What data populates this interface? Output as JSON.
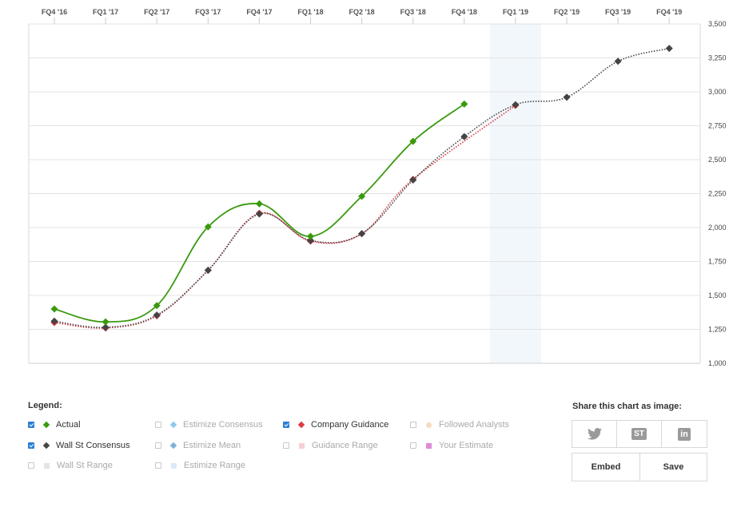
{
  "chart_data": {
    "type": "line",
    "categories": [
      "FQ4 '16",
      "FQ1 '17",
      "FQ2 '17",
      "FQ3 '17",
      "FQ4 '17",
      "FQ1 '18",
      "FQ2 '18",
      "FQ3 '18",
      "FQ4 '18",
      "FQ1 '19",
      "FQ2 '19",
      "FQ3 '19",
      "FQ4 '19"
    ],
    "y_ticks": [
      "3,500",
      "3,250",
      "3,000",
      "2,750",
      "2,500",
      "2,250",
      "2,000",
      "1,750",
      "1,500",
      "1,250",
      "1,000"
    ],
    "ylim": [
      1000,
      3500
    ],
    "highlighted_category": "FQ1 '19",
    "grid": true,
    "series": [
      {
        "name": "Actual",
        "color": "#3a9a0e",
        "style": "solid",
        "values": [
          1400,
          1305,
          1425,
          2005,
          2175,
          1935,
          2230,
          2635,
          2910,
          null,
          null,
          null,
          null
        ]
      },
      {
        "name": "Wall St Consensus",
        "color": "#444444",
        "style": "dotted",
        "values": [
          1310,
          1265,
          1355,
          1685,
          2100,
          1905,
          1955,
          2350,
          2670,
          2905,
          2960,
          3225,
          3320
        ]
      },
      {
        "name": "Company Guidance",
        "color": "#d9363e",
        "style": "dotted",
        "values": [
          1300,
          1260,
          1350,
          1685,
          2105,
          1900,
          1955,
          2355,
          null,
          2900,
          null,
          null,
          null
        ]
      }
    ]
  },
  "legend": {
    "title": "Legend:",
    "items": [
      {
        "label": "Actual",
        "checked": true,
        "color": "#3a9a0e",
        "shape": "diamond"
      },
      {
        "label": "Estimize Consensus",
        "checked": false,
        "color": "#8fc8ee",
        "shape": "diamond"
      },
      {
        "label": "Company Guidance",
        "checked": true,
        "color": "#e03a44",
        "shape": "diamond"
      },
      {
        "label": "Followed Analysts",
        "checked": false,
        "color": "#f4dcc0",
        "shape": "circle"
      },
      {
        "label": "Wall St Consensus",
        "checked": true,
        "color": "#444444",
        "shape": "diamond"
      },
      {
        "label": "Estimize Mean",
        "checked": false,
        "color": "#7fb0d8",
        "shape": "diamond"
      },
      {
        "label": "Guidance Range",
        "checked": false,
        "color": "#f6d0d6",
        "shape": "square"
      },
      {
        "label": "Your Estimate",
        "checked": false,
        "color": "#e08ad8",
        "shape": "square"
      },
      {
        "label": "Wall St Range",
        "checked": false,
        "color": "#e4e4e4",
        "shape": "square"
      },
      {
        "label": "Estimize Range",
        "checked": false,
        "color": "#dbeaf7",
        "shape": "square"
      }
    ]
  },
  "share": {
    "title": "Share this chart as image:",
    "icons": [
      "twitter-icon",
      "stocktwits-icon",
      "linkedin-icon"
    ],
    "stocktwits_text": "ST",
    "linkedin_text": "in",
    "embed_label": "Embed",
    "save_label": "Save"
  }
}
